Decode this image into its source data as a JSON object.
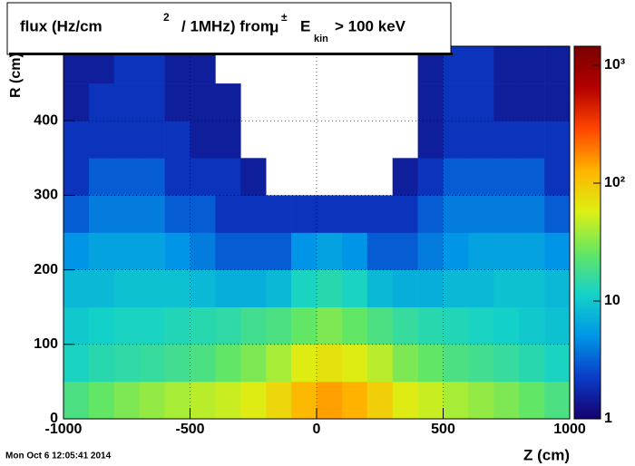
{
  "chart_data": {
    "type": "heatmap",
    "title_parts": [
      "flux (Hz/cm",
      "2",
      "/ 1MHz) from",
      "μ",
      "±",
      "E",
      "kin",
      "> 100 keV"
    ],
    "x_label": "Z (cm)",
    "y_label": "R (cm)",
    "timestamp": "Mon Oct  6 12:05:41 2014",
    "x": [
      -1000,
      -900,
      -800,
      -700,
      -600,
      -500,
      -400,
      -300,
      -200,
      -100,
      0,
      100,
      200,
      300,
      400,
      500,
      600,
      700,
      800,
      900,
      1000
    ],
    "y": [
      0,
      50,
      100,
      150,
      200,
      250,
      300,
      350,
      400,
      450,
      500
    ],
    "z": [
      [
        20,
        25,
        30,
        35,
        40,
        45,
        50,
        60,
        80,
        120,
        150,
        130,
        90,
        60,
        50,
        40,
        35,
        30,
        25,
        20
      ],
      [
        12,
        14,
        15,
        16,
        18,
        20,
        25,
        30,
        40,
        60,
        70,
        60,
        45,
        30,
        25,
        20,
        18,
        16,
        14,
        12
      ],
      [
        10,
        11,
        12,
        12,
        13,
        14,
        15,
        18,
        20,
        25,
        30,
        25,
        20,
        16,
        14,
        13,
        12,
        11,
        10,
        9
      ],
      [
        8,
        8,
        9,
        9,
        9,
        8,
        7,
        7,
        8,
        12,
        14,
        12,
        8,
        7,
        7,
        8,
        8,
        9,
        9,
        8
      ],
      [
        5,
        6,
        6,
        6,
        5,
        4,
        3,
        3,
        3,
        5,
        6,
        5,
        3,
        3,
        4,
        5,
        6,
        6,
        6,
        5
      ],
      [
        3,
        4,
        4,
        4,
        3,
        3,
        2,
        2,
        2,
        2,
        2,
        2,
        2,
        2,
        3,
        4,
        4,
        4,
        4,
        3
      ],
      [
        2,
        3,
        3,
        3,
        2,
        2,
        2,
        1.5,
        null,
        null,
        null,
        null,
        null,
        1.5,
        2,
        3,
        3,
        3,
        3,
        2
      ],
      [
        2,
        2,
        2,
        2,
        2,
        1.5,
        1.5,
        null,
        null,
        null,
        null,
        null,
        null,
        null,
        1.5,
        2,
        2,
        2,
        2,
        2
      ],
      [
        1.5,
        2,
        2,
        2,
        1.5,
        1.5,
        1.5,
        null,
        null,
        null,
        null,
        null,
        null,
        null,
        1.5,
        2,
        2,
        1.5,
        1.5,
        1.5
      ],
      [
        1.5,
        1.5,
        2,
        2,
        1.5,
        1.5,
        null,
        null,
        null,
        null,
        null,
        null,
        null,
        null,
        1.5,
        2,
        2,
        1.5,
        1.5,
        1.5
      ]
    ],
    "xlim": [
      -1000,
      1000
    ],
    "ylim": [
      0,
      500
    ],
    "zlim": [
      1,
      1450
    ],
    "z_log": true,
    "xticks": [
      -1000,
      -500,
      0,
      500,
      1000
    ],
    "yticks": [
      0,
      100,
      200,
      300,
      400
    ],
    "zticks": [
      1,
      10,
      {
        "value": 100,
        "label": "10²"
      },
      {
        "value": 1000,
        "label": "10³"
      }
    ],
    "grid": true,
    "colorscale": [
      "#14006e",
      "#0a3cc8",
      "#0096e6",
      "#14d2c8",
      "#64e664",
      "#dcf014",
      "#ffb400",
      "#ff4600",
      "#b40000",
      "#780000"
    ]
  }
}
